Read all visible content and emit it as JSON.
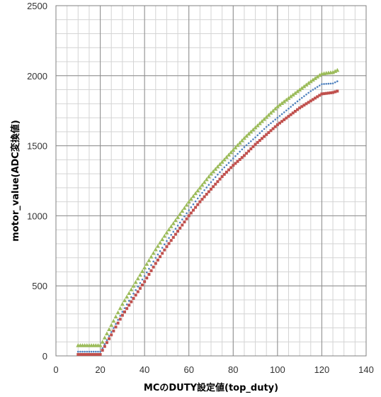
{
  "chart_data": {
    "type": "scatter",
    "xlabel": "MCのDUTY設定値(top_duty)",
    "ylabel": "motor_value(ADC変換値)",
    "xlim": [
      0,
      140
    ],
    "ylim": [
      0,
      2500
    ],
    "x_ticks": [
      0,
      20,
      40,
      60,
      80,
      100,
      120,
      140
    ],
    "y_ticks": [
      0,
      500,
      1000,
      1500,
      2000,
      2500
    ],
    "grid": {
      "major": true,
      "minor": true
    },
    "series": [
      {
        "marker": "triangle",
        "color": "#9bbb59",
        "x": [
          10,
          20,
          21,
          25,
          30,
          35,
          40,
          45,
          50,
          55,
          60,
          65,
          70,
          75,
          80,
          85,
          90,
          95,
          100,
          105,
          110,
          115,
          120,
          125,
          127
        ],
        "y": [
          75,
          75,
          100,
          220,
          370,
          500,
          630,
          760,
          880,
          990,
          1100,
          1200,
          1300,
          1385,
          1470,
          1555,
          1630,
          1705,
          1780,
          1840,
          1900,
          1960,
          2015,
          2025,
          2040
        ]
      },
      {
        "marker": "dot",
        "color": "#4f81bd",
        "x": [
          10,
          20,
          21,
          25,
          30,
          35,
          40,
          45,
          50,
          55,
          60,
          65,
          70,
          75,
          80,
          85,
          90,
          95,
          100,
          105,
          110,
          115,
          120,
          125,
          127
        ],
        "y": [
          30,
          30,
          55,
          170,
          315,
          445,
          570,
          700,
          820,
          930,
          1040,
          1145,
          1240,
          1330,
          1410,
          1490,
          1560,
          1635,
          1700,
          1765,
          1830,
          1890,
          1940,
          1945,
          1960
        ]
      },
      {
        "marker": "square",
        "color": "#c0504d",
        "x": [
          10,
          20,
          21,
          25,
          30,
          35,
          40,
          45,
          50,
          55,
          60,
          65,
          70,
          75,
          80,
          85,
          90,
          95,
          100,
          105,
          110,
          115,
          120,
          125,
          127
        ],
        "y": [
          10,
          10,
          40,
          150,
          290,
          410,
          530,
          660,
          780,
          890,
          1000,
          1100,
          1190,
          1280,
          1360,
          1430,
          1510,
          1580,
          1650,
          1710,
          1770,
          1820,
          1870,
          1880,
          1890
        ]
      }
    ]
  }
}
